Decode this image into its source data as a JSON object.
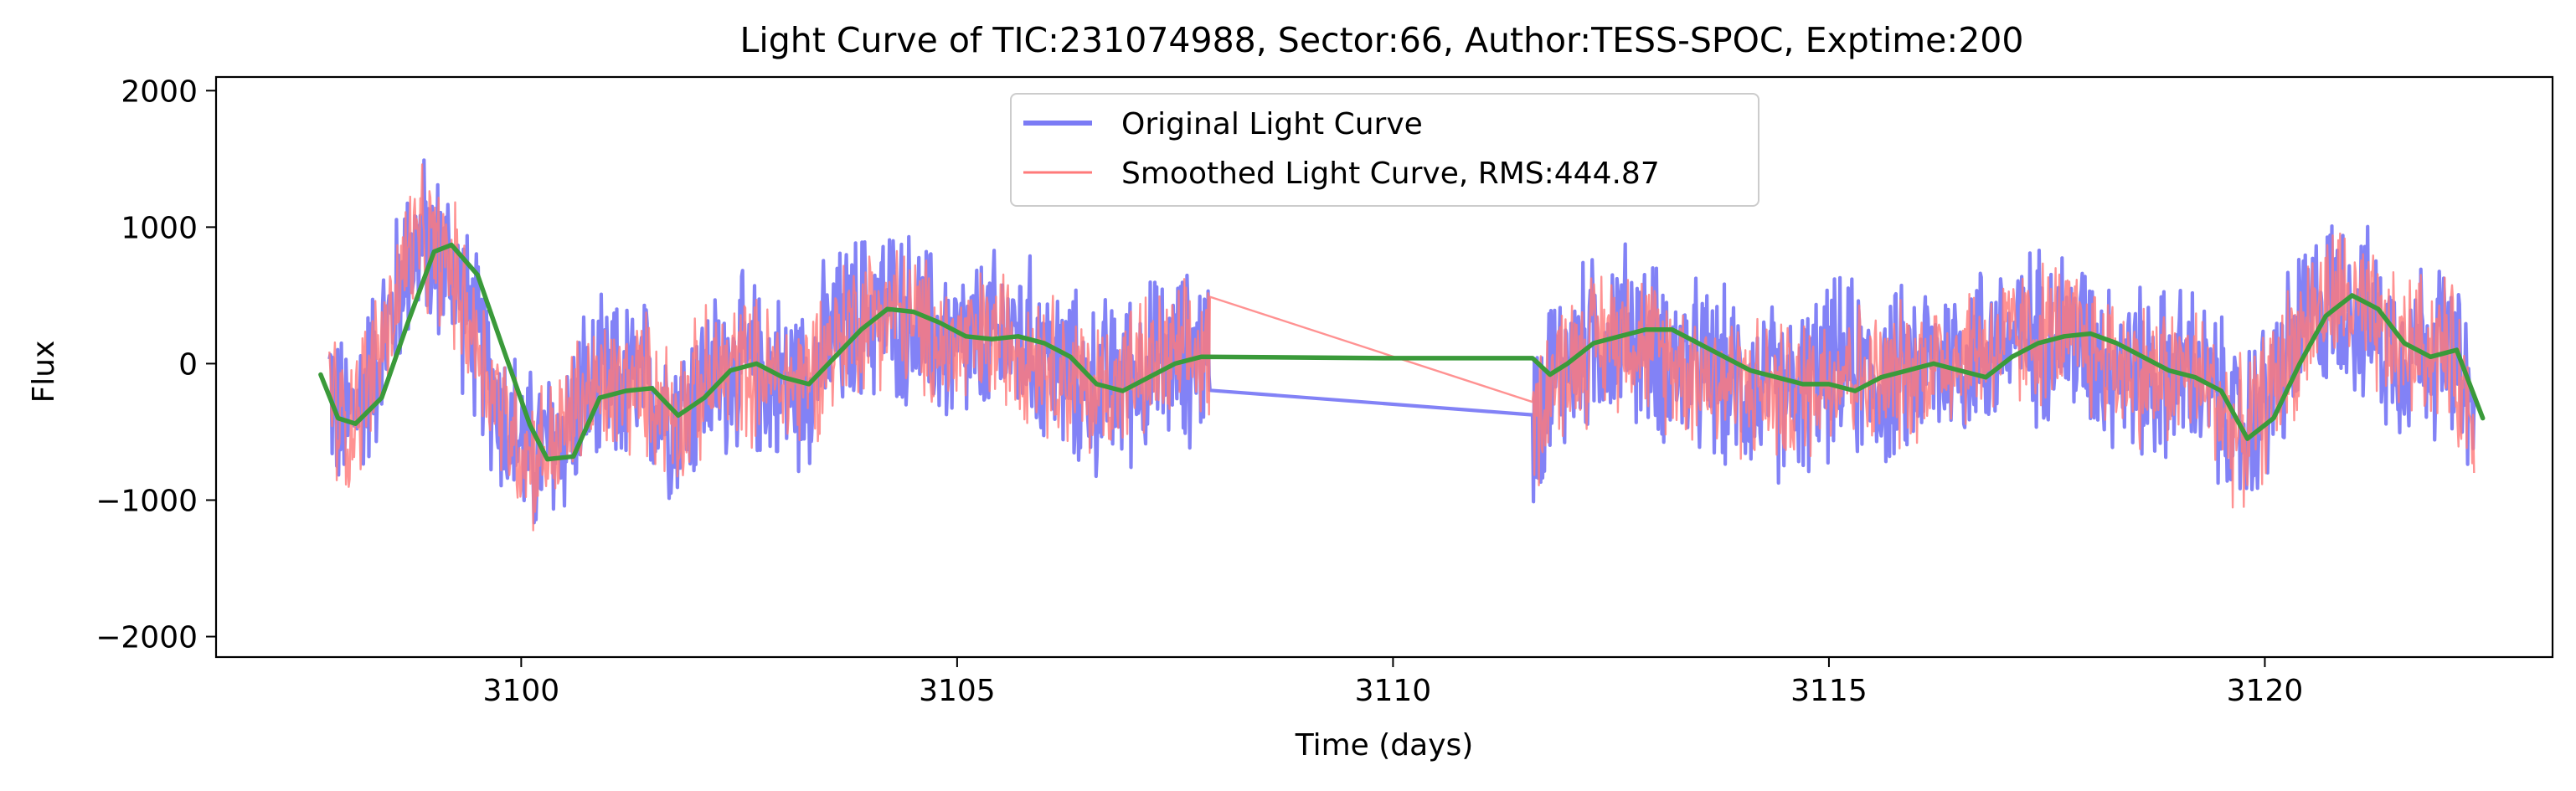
{
  "chart_data": {
    "type": "line",
    "title": "Light Curve of TIC:231074988, Sector:66, Author:TESS-SPOC, Exptime:200",
    "xlabel": "Time (days)",
    "ylabel": "Flux",
    "xlim": [
      3096.5,
      3123.3
    ],
    "ylim": [
      -2150,
      2100
    ],
    "xticks": [
      3100,
      3105,
      3110,
      3115,
      3120
    ],
    "xtick_labels": [
      "3100",
      "3105",
      "3110",
      "3115",
      "3120"
    ],
    "yticks": [
      -2000,
      -1000,
      0,
      1000,
      2000
    ],
    "ytick_labels": [
      "−2000",
      "−1000",
      "0",
      "1000",
      "2000"
    ],
    "grid": false,
    "legend_position": "top-center",
    "series": [
      {
        "name": "Original Light Curve",
        "color": "#7b7bf5",
        "style": "noisy-line",
        "x": [
          3097.8,
          3097.9,
          3098.0,
          3098.2,
          3098.5,
          3098.7,
          3098.9,
          3099.2,
          3099.5,
          3099.8,
          3100.1,
          3100.4,
          3100.7,
          3101.0,
          3101.4,
          3101.8,
          3102.1,
          3102.5,
          3102.9,
          3103.2,
          3103.5,
          3103.8,
          3104.1,
          3104.4,
          3104.7,
          3105.0,
          3105.3,
          3105.6,
          3105.9,
          3106.2,
          3106.5,
          3106.8,
          3107.1,
          3107.4,
          3107.7,
          3107.9,
          3111.6,
          3111.8,
          3112.1,
          3112.4,
          3112.7,
          3113.0,
          3113.3,
          3113.7,
          3114.0,
          3114.3,
          3114.6,
          3114.9,
          3115.2,
          3115.5,
          3115.8,
          3116.1,
          3116.4,
          3116.7,
          3117.0,
          3117.3,
          3117.6,
          3117.9,
          3118.2,
          3118.5,
          3118.8,
          3119.1,
          3119.4,
          3119.7,
          3120.0,
          3120.3,
          3120.6,
          3120.9,
          3121.2,
          3121.5,
          3121.8,
          3122.1,
          3122.4
        ],
        "y": [
          -100,
          -420,
          -450,
          -200,
          300,
          820,
          870,
          700,
          150,
          -400,
          -680,
          -600,
          -250,
          -200,
          -150,
          -380,
          -150,
          0,
          -100,
          -150,
          100,
          300,
          400,
          350,
          200,
          100,
          150,
          200,
          100,
          -50,
          -200,
          -150,
          -50,
          0,
          50,
          80,
          -480,
          -100,
          50,
          200,
          250,
          100,
          0,
          -100,
          -150,
          -200,
          -250,
          -100,
          0,
          -150,
          -100,
          0,
          50,
          100,
          150,
          200,
          250,
          150,
          50,
          -50,
          -100,
          -50,
          -200,
          -550,
          -300,
          100,
          400,
          500,
          300,
          100,
          150,
          100,
          -400
        ]
      },
      {
        "name": "Smoothed Light Curve, RMS:444.87",
        "color": "#ff7a7a",
        "style": "noisy-line",
        "x": [
          3097.8,
          3097.9,
          3098.0,
          3098.2,
          3098.5,
          3098.7,
          3098.9,
          3099.2,
          3099.5,
          3099.8,
          3100.1,
          3100.4,
          3100.7,
          3101.0,
          3101.4,
          3101.8,
          3102.1,
          3102.5,
          3102.9,
          3103.2,
          3103.5,
          3103.8,
          3104.1,
          3104.4,
          3104.7,
          3105.0,
          3105.3,
          3105.6,
          3105.9,
          3106.2,
          3106.5,
          3106.8,
          3107.1,
          3107.4,
          3107.7,
          3107.9,
          3111.6,
          3111.8,
          3112.1,
          3112.4,
          3112.7,
          3113.0,
          3113.3,
          3113.7,
          3114.0,
          3114.3,
          3114.6,
          3114.9,
          3115.2,
          3115.5,
          3115.8,
          3116.1,
          3116.4,
          3116.7,
          3117.0,
          3117.3,
          3117.6,
          3117.9,
          3118.2,
          3118.5,
          3118.8,
          3119.1,
          3119.4,
          3119.7,
          3120.0,
          3120.3,
          3120.6,
          3120.9,
          3121.2,
          3121.5,
          3121.8,
          3122.1,
          3122.4
        ],
        "y": [
          -100,
          -420,
          -450,
          -200,
          300,
          820,
          870,
          700,
          150,
          -400,
          -680,
          -600,
          -250,
          -200,
          -150,
          -380,
          -150,
          0,
          -100,
          -150,
          100,
          300,
          400,
          350,
          200,
          100,
          150,
          200,
          100,
          -50,
          -200,
          -150,
          -50,
          0,
          50,
          80,
          -480,
          -100,
          50,
          200,
          250,
          100,
          0,
          -100,
          -150,
          -200,
          -250,
          -100,
          0,
          -150,
          -100,
          0,
          50,
          100,
          150,
          200,
          250,
          150,
          50,
          -50,
          -100,
          -50,
          -200,
          -550,
          -300,
          100,
          400,
          500,
          300,
          100,
          150,
          100,
          -400
        ]
      },
      {
        "name": "",
        "color": "#3a9a3a",
        "style": "smooth-line",
        "x": [
          3097.7,
          3097.9,
          3098.1,
          3098.4,
          3098.7,
          3099.0,
          3099.2,
          3099.5,
          3099.8,
          3100.1,
          3100.3,
          3100.6,
          3100.9,
          3101.2,
          3101.5,
          3101.8,
          3102.1,
          3102.4,
          3102.7,
          3103.0,
          3103.3,
          3103.6,
          3103.9,
          3104.2,
          3104.5,
          3104.8,
          3105.1,
          3105.4,
          3105.7,
          3106.0,
          3106.3,
          3106.6,
          3106.9,
          3107.2,
          3107.5,
          3107.8,
          3110.0,
          3111.6,
          3111.8,
          3112.0,
          3112.3,
          3112.6,
          3112.9,
          3113.2,
          3113.5,
          3113.8,
          3114.1,
          3114.4,
          3114.7,
          3115.0,
          3115.3,
          3115.6,
          3115.9,
          3116.2,
          3116.5,
          3116.8,
          3117.1,
          3117.4,
          3117.7,
          3118.0,
          3118.3,
          3118.6,
          3118.9,
          3119.2,
          3119.5,
          3119.8,
          3120.1,
          3120.4,
          3120.7,
          3121.0,
          3121.3,
          3121.6,
          3121.9,
          3122.2,
          3122.5
        ],
        "y": [
          -80,
          -400,
          -440,
          -250,
          300,
          820,
          870,
          650,
          100,
          -450,
          -700,
          -680,
          -250,
          -200,
          -180,
          -380,
          -250,
          -50,
          0,
          -100,
          -150,
          50,
          250,
          400,
          380,
          300,
          200,
          180,
          200,
          150,
          50,
          -150,
          -200,
          -100,
          0,
          50,
          40,
          40,
          -80,
          0,
          150,
          200,
          250,
          250,
          150,
          50,
          -50,
          -100,
          -150,
          -150,
          -200,
          -100,
          -50,
          0,
          -50,
          -100,
          50,
          150,
          200,
          220,
          150,
          50,
          -50,
          -100,
          -200,
          -550,
          -400,
          0,
          350,
          500,
          400,
          150,
          50,
          100,
          -400
        ]
      }
    ]
  }
}
